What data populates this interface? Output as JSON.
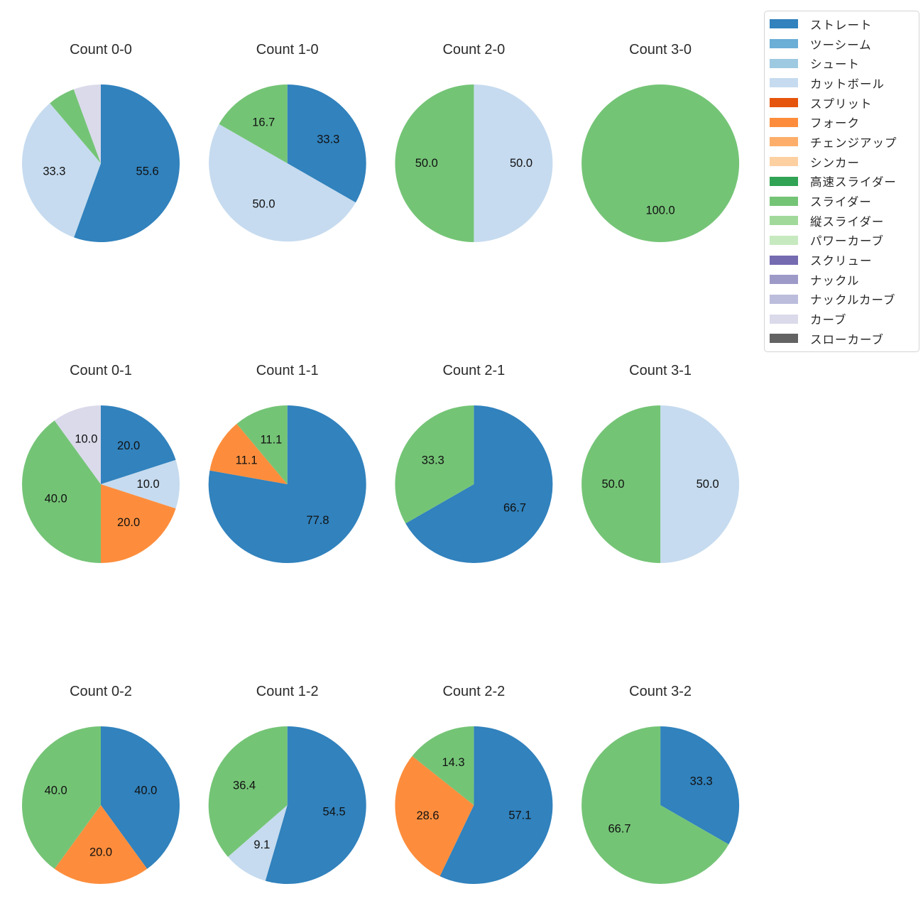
{
  "figure": {
    "background": "#ffffff",
    "pie_style": {
      "start_angle_deg": 90,
      "direction": "clockwise",
      "percent_label_distance": 0.6,
      "label_color": "#111111",
      "title_color": "#2b2b2b"
    }
  },
  "legend": {
    "position": "upper right",
    "items": [
      {
        "label": "ストレート",
        "color": "#3182bd"
      },
      {
        "label": "ツーシーム",
        "color": "#6baed6"
      },
      {
        "label": "シュート",
        "color": "#9ecae1"
      },
      {
        "label": "カットボール",
        "color": "#c6dbef"
      },
      {
        "label": "スプリット",
        "color": "#e6550d"
      },
      {
        "label": "フォーク",
        "color": "#fd8d3c"
      },
      {
        "label": "チェンジアップ",
        "color": "#fdae6b"
      },
      {
        "label": "シンカー",
        "color": "#fdd0a2"
      },
      {
        "label": "高速スライダー",
        "color": "#31a354"
      },
      {
        "label": "スライダー",
        "color": "#74c476"
      },
      {
        "label": "縦スライダー",
        "color": "#a1d99b"
      },
      {
        "label": "パワーカーブ",
        "color": "#c7e9c0"
      },
      {
        "label": "スクリュー",
        "color": "#756bb1"
      },
      {
        "label": "ナックル",
        "color": "#9e9ac8"
      },
      {
        "label": "ナックルカーブ",
        "color": "#bcbddc"
      },
      {
        "label": "カーブ",
        "color": "#dadaeb"
      },
      {
        "label": "スローカーブ",
        "color": "#636363"
      }
    ]
  },
  "chart_data": [
    {
      "type": "pie",
      "title": "Count 0-0",
      "labels": [
        "ストレート",
        "カットボール",
        "スライダー",
        "カーブ"
      ],
      "values": [
        55.6,
        33.3,
        5.6,
        5.6
      ],
      "value_labels": [
        "55.6",
        "33.3",
        "",
        ""
      ]
    },
    {
      "type": "pie",
      "title": "Count 1-0",
      "labels": [
        "ストレート",
        "カットボール",
        "スライダー"
      ],
      "values": [
        33.3,
        50.0,
        16.7
      ],
      "value_labels": [
        "33.3",
        "50.0",
        "16.7"
      ]
    },
    {
      "type": "pie",
      "title": "Count 2-0",
      "labels": [
        "カットボール",
        "スライダー"
      ],
      "values": [
        50.0,
        50.0
      ],
      "value_labels": [
        "50.0",
        "50.0"
      ]
    },
    {
      "type": "pie",
      "title": "Count 3-0",
      "labels": [
        "スライダー"
      ],
      "values": [
        100.0
      ],
      "value_labels": [
        "100.0"
      ]
    },
    {
      "type": "pie",
      "title": "Count 0-1",
      "labels": [
        "ストレート",
        "カットボール",
        "フォーク",
        "スライダー",
        "カーブ"
      ],
      "values": [
        20.0,
        10.0,
        20.0,
        40.0,
        10.0
      ],
      "value_labels": [
        "20.0",
        "10.0",
        "20.0",
        "40.0",
        "10.0"
      ]
    },
    {
      "type": "pie",
      "title": "Count 1-1",
      "labels": [
        "ストレート",
        "フォーク",
        "スライダー"
      ],
      "values": [
        77.8,
        11.1,
        11.1
      ],
      "value_labels": [
        "77.8",
        "11.1",
        "11.1"
      ]
    },
    {
      "type": "pie",
      "title": "Count 2-1",
      "labels": [
        "ストレート",
        "スライダー"
      ],
      "values": [
        66.7,
        33.3
      ],
      "value_labels": [
        "66.7",
        "33.3"
      ]
    },
    {
      "type": "pie",
      "title": "Count 3-1",
      "labels": [
        "カットボール",
        "スライダー"
      ],
      "values": [
        50.0,
        50.0
      ],
      "value_labels": [
        "50.0",
        "50.0"
      ]
    },
    {
      "type": "pie",
      "title": "Count 0-2",
      "labels": [
        "ストレート",
        "フォーク",
        "スライダー"
      ],
      "values": [
        40.0,
        20.0,
        40.0
      ],
      "value_labels": [
        "40.0",
        "20.0",
        "40.0"
      ]
    },
    {
      "type": "pie",
      "title": "Count 1-2",
      "labels": [
        "ストレート",
        "カットボール",
        "スライダー"
      ],
      "values": [
        54.5,
        9.1,
        36.4
      ],
      "value_labels": [
        "54.5",
        "9.1",
        "36.4"
      ]
    },
    {
      "type": "pie",
      "title": "Count 2-2",
      "labels": [
        "ストレート",
        "フォーク",
        "スライダー"
      ],
      "values": [
        57.1,
        28.6,
        14.3
      ],
      "value_labels": [
        "57.1",
        "28.6",
        "14.3"
      ]
    },
    {
      "type": "pie",
      "title": "Count 3-2",
      "labels": [
        "ストレート",
        "スライダー"
      ],
      "values": [
        33.3,
        66.7
      ],
      "value_labels": [
        "33.3",
        "66.7"
      ]
    }
  ]
}
